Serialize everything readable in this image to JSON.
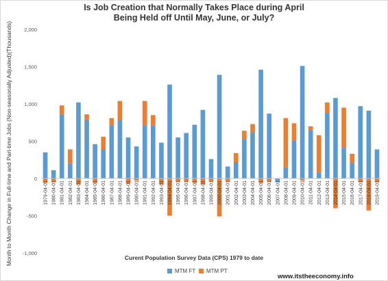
{
  "chart_data": {
    "type": "bar",
    "title_line1": "Is Job Creation that Normally Takes Place during April",
    "title_line2": "Being Held off Until May, June, or July?",
    "xlabel": "Curent Population Survey Data (CPS) 1979 to date",
    "ylabel": "Month to Month Change in Full-time and Part-time Jobs (Non-seasonally Adjusted)(Thousands)",
    "ylim": [
      -1000,
      2000
    ],
    "yticks": [
      "2,000",
      "1,500",
      "1,000",
      "500",
      "0",
      "-500",
      "-1,000"
    ],
    "ytick_values": [
      2000,
      1500,
      1000,
      500,
      0,
      -500,
      -1000
    ],
    "stacked": true,
    "grid": false,
    "legend_position": "bottom",
    "categories": [
      "1979-04-01",
      "1980-04-01",
      "1981-04-01",
      "1982-04-01",
      "1983-04-01",
      "1984-04-01",
      "1985-04-01",
      "1986-04-01",
      "1987-04-01",
      "1988-04-01",
      "1989-04-01",
      "1990-04-01",
      "1991-04-01",
      "1992-04-01",
      "1993-04-01",
      "1994-04-01",
      "1995-04-01",
      "1996-04-01",
      "1997-04-01",
      "1998-04-01",
      "1999-04-01",
      "2000-04-01",
      "2001-04-01",
      "2002-04-01",
      "2003-04-01",
      "2004-04-01",
      "2005-04-01",
      "2006-04-01",
      "2007-04-01",
      "2008-04-01",
      "2009-04-01",
      "2010-04-01",
      "2011-04-01",
      "2012-04-01",
      "2013-04-01",
      "2014-04-01",
      "2015-04-01",
      "2016-04-01",
      "2017-04-01",
      "2018-04-01",
      "2019-04-01"
    ],
    "series": [
      {
        "name": "MTM FT",
        "color": "#5b9bd5",
        "values": [
          350,
          110,
          860,
          200,
          1020,
          790,
          460,
          390,
          710,
          780,
          550,
          430,
          710,
          710,
          480,
          1260,
          550,
          610,
          720,
          920,
          260,
          1390,
          160,
          220,
          530,
          620,
          1460,
          870,
          -50,
          150,
          510,
          1510,
          650,
          80,
          880,
          1080,
          410,
          210,
          970,
          910,
          390
        ]
      },
      {
        "name": "MTM PT",
        "color": "#ed7d31",
        "values": [
          -60,
          -50,
          120,
          190,
          -80,
          70,
          -60,
          170,
          100,
          260,
          -70,
          -30,
          330,
          140,
          -80,
          -500,
          -40,
          -40,
          -60,
          -80,
          -40,
          -510,
          -40,
          120,
          110,
          110,
          -60,
          -40,
          0,
          660,
          230,
          -30,
          50,
          500,
          140,
          -400,
          540,
          120,
          -50,
          -430,
          -50
        ]
      }
    ],
    "legend": [
      {
        "name": "MTM FT",
        "color": "#5b9bd5"
      },
      {
        "name": "MTM PT",
        "color": "#ed7d31"
      }
    ],
    "source": "www.itstheeconomy.info"
  }
}
